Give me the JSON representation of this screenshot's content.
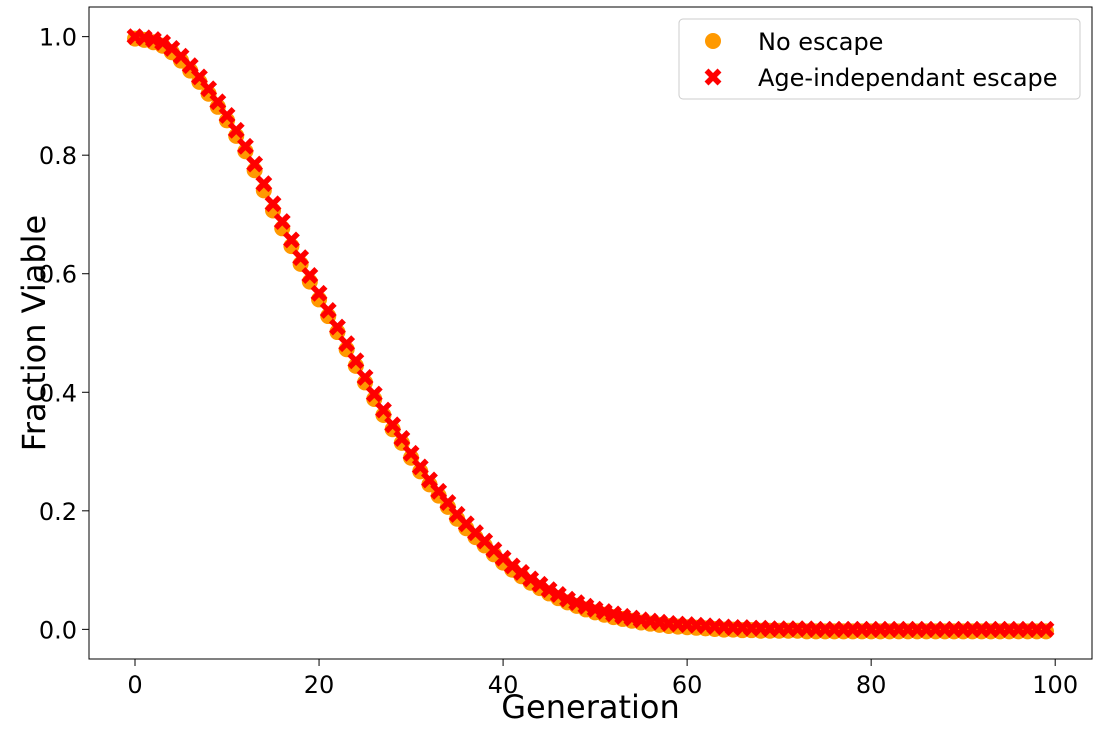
{
  "chart_data": {
    "type": "scatter",
    "title": "",
    "xlabel": "Generation",
    "ylabel": "Fraction Viable",
    "xlim": [
      -5,
      104
    ],
    "ylim": [
      -0.05,
      1.05
    ],
    "x_ticks": [
      0,
      20,
      40,
      60,
      80,
      100
    ],
    "y_ticks": [
      0.0,
      0.2,
      0.4,
      0.6,
      0.8,
      1.0
    ],
    "x_tick_labels": [
      "0",
      "20",
      "40",
      "60",
      "80",
      "100"
    ],
    "y_tick_labels": [
      "0.0",
      "0.2",
      "0.4",
      "0.6",
      "0.8",
      "1.0"
    ],
    "grid": false,
    "legend_position": "top-right",
    "x": [
      0,
      1,
      2,
      3,
      4,
      5,
      6,
      7,
      8,
      9,
      10,
      11,
      12,
      13,
      14,
      15,
      16,
      17,
      18,
      19,
      20,
      21,
      22,
      23,
      24,
      25,
      26,
      27,
      28,
      29,
      30,
      31,
      32,
      33,
      34,
      35,
      36,
      37,
      38,
      39,
      40,
      41,
      42,
      43,
      44,
      45,
      46,
      47,
      48,
      49,
      50,
      51,
      52,
      53,
      54,
      55,
      56,
      57,
      58,
      59,
      60,
      61,
      62,
      63,
      64,
      65,
      66,
      67,
      68,
      69,
      70,
      71,
      72,
      73,
      74,
      75,
      76,
      77,
      78,
      79,
      80,
      81,
      82,
      83,
      84,
      85,
      86,
      87,
      88,
      89,
      90,
      91,
      92,
      93,
      94,
      95,
      96,
      97,
      98,
      99
    ],
    "series": [
      {
        "name": "No escape",
        "marker": "circle",
        "color": "#ff9900",
        "values": [
          1.0,
          0.998,
          0.994,
          0.988,
          0.977,
          0.963,
          0.946,
          0.927,
          0.907,
          0.885,
          0.862,
          0.836,
          0.81,
          0.778,
          0.744,
          0.71,
          0.68,
          0.65,
          0.62,
          0.59,
          0.56,
          0.532,
          0.505,
          0.476,
          0.448,
          0.42,
          0.392,
          0.365,
          0.341,
          0.318,
          0.293,
          0.27,
          0.248,
          0.229,
          0.21,
          0.19,
          0.174,
          0.159,
          0.145,
          0.13,
          0.116,
          0.104,
          0.093,
          0.082,
          0.073,
          0.064,
          0.056,
          0.049,
          0.043,
          0.037,
          0.032,
          0.028,
          0.024,
          0.021,
          0.018,
          0.015,
          0.013,
          0.011,
          0.009,
          0.008,
          0.007,
          0.006,
          0.005,
          0.004,
          0.003,
          0.003,
          0.002,
          0.002,
          0.001,
          0.001,
          0.001,
          0.001,
          0.001,
          0.0,
          0.0,
          0.0,
          0.0,
          0.0,
          0.0,
          0.0,
          0.0,
          0.0,
          0.0,
          0.0,
          0.0,
          0.0,
          0.0,
          0.0,
          0.0,
          0.0,
          0.0,
          0.0,
          0.0,
          0.0,
          0.0,
          0.0,
          0.0,
          0.0,
          0.0,
          0.0
        ]
      },
      {
        "name": "Age-independant escape",
        "marker": "x",
        "color": "#ff0000",
        "values": [
          1.0,
          0.998,
          0.995,
          0.99,
          0.98,
          0.967,
          0.951,
          0.932,
          0.912,
          0.89,
          0.867,
          0.842,
          0.815,
          0.785,
          0.752,
          0.718,
          0.688,
          0.657,
          0.627,
          0.597,
          0.567,
          0.538,
          0.51,
          0.482,
          0.453,
          0.425,
          0.397,
          0.37,
          0.345,
          0.322,
          0.297,
          0.274,
          0.252,
          0.233,
          0.214,
          0.194,
          0.178,
          0.163,
          0.149,
          0.134,
          0.12,
          0.107,
          0.096,
          0.085,
          0.076,
          0.067,
          0.059,
          0.051,
          0.045,
          0.039,
          0.034,
          0.03,
          0.026,
          0.022,
          0.019,
          0.016,
          0.014,
          0.012,
          0.01,
          0.009,
          0.008,
          0.007,
          0.006,
          0.005,
          0.004,
          0.003,
          0.003,
          0.002,
          0.002,
          0.001,
          0.001,
          0.001,
          0.001,
          0.001,
          0.0,
          0.0,
          0.0,
          0.0,
          0.0,
          0.0,
          0.0,
          0.0,
          0.0,
          0.0,
          0.0,
          0.0,
          0.0,
          0.0,
          0.0,
          0.0,
          0.0,
          0.0,
          0.0,
          0.0,
          0.0,
          0.0,
          0.0,
          0.0,
          0.0,
          0.0
        ]
      }
    ]
  }
}
